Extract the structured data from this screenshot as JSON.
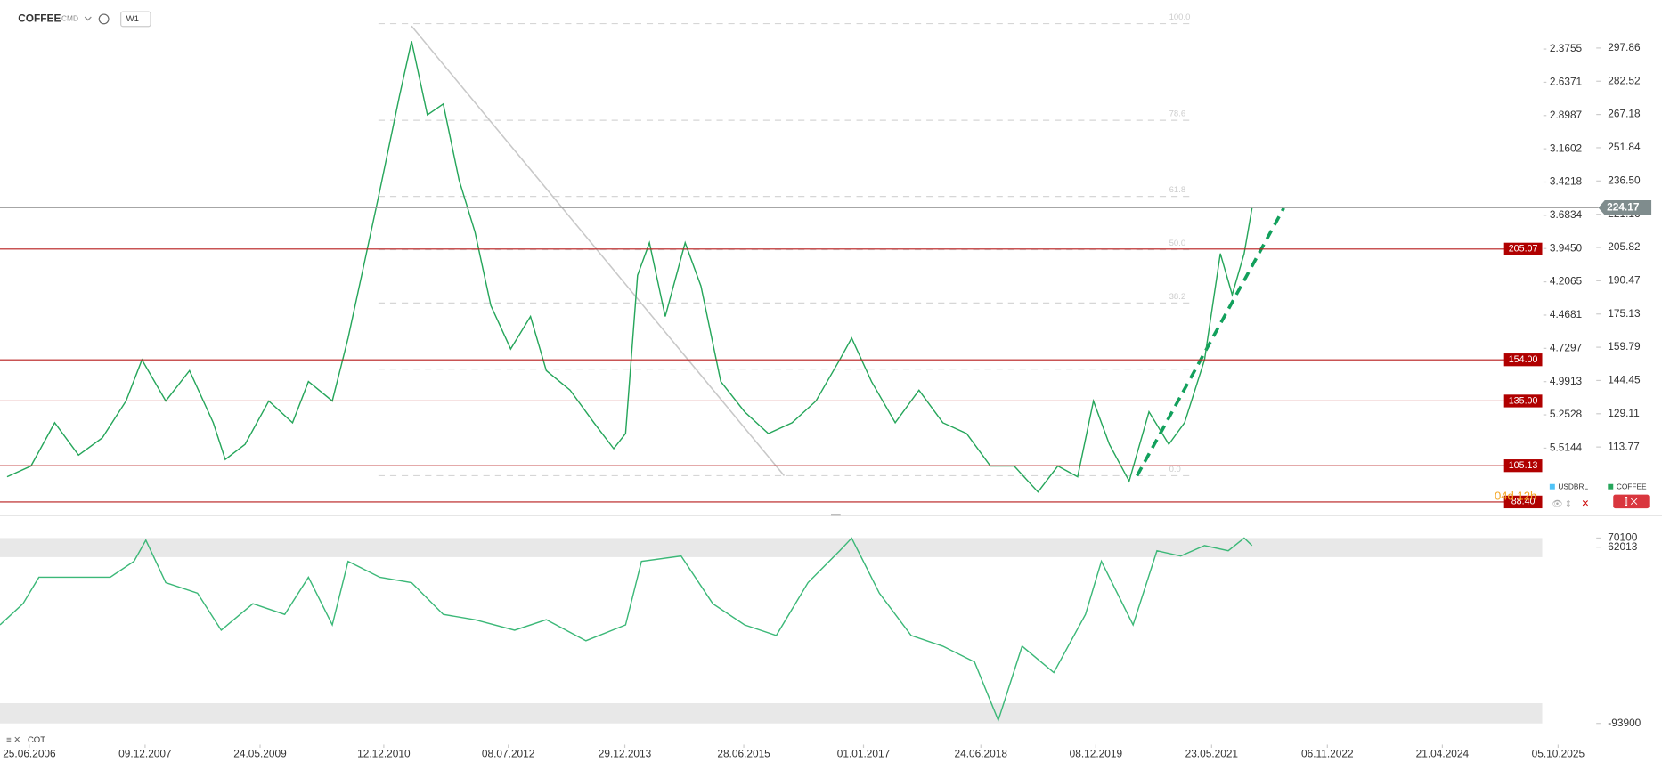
{
  "header": {
    "symbol": "COFFEE",
    "class": "CMD",
    "interval": "W1",
    "indicator": "COT"
  },
  "chart_data": [
    {
      "type": "line",
      "y_axis_name": "COFFEE",
      "y2_axis_name": "USDBRL",
      "y2_color": "#4fc3f7",
      "countdown": "04d 12h",
      "xlim": [
        2006.11,
        2027.07
      ],
      "ylim": [
        83,
        320
      ],
      "y2lim": [
        6.03,
        1.99
      ],
      "xticks": [
        {
          "value": 2006.48,
          "label": "25.06.2006"
        },
        {
          "value": 2007.94,
          "label": "09.12.2007"
        },
        {
          "value": 2009.39,
          "label": "24.05.2009"
        },
        {
          "value": 2010.95,
          "label": "12.12.2010"
        },
        {
          "value": 2012.52,
          "label": "08.07.2012"
        },
        {
          "value": 2013.99,
          "label": "29.12.2013"
        },
        {
          "value": 2015.49,
          "label": "28.06.2015"
        },
        {
          "value": 2017.0,
          "label": "01.01.2017"
        },
        {
          "value": 2018.48,
          "label": "24.06.2018"
        },
        {
          "value": 2019.93,
          "label": "08.12.2019"
        },
        {
          "value": 2021.39,
          "label": "23.05.2021"
        },
        {
          "value": 2022.85,
          "label": "06.11.2022"
        },
        {
          "value": 2024.3,
          "label": "21.04.2024"
        },
        {
          "value": 2025.76,
          "label": "05.10.2025"
        }
      ],
      "yticks": [
        297.86,
        282.52,
        267.18,
        251.84,
        {
          "value": 236.5,
          "label": "236.50"
        },
        221.16,
        205.82,
        190.47,
        175.13,
        159.79,
        144.45,
        129.11,
        113.77
      ],
      "y2ticks": [
        2.3755,
        2.6371,
        2.8987,
        3.1602,
        3.4218,
        3.6834,
        {
          "value": 3.945,
          "label": "3.9450"
        },
        4.2065,
        4.4681,
        4.7297,
        4.9913,
        5.2528,
        5.5144
      ],
      "series": [
        {
          "name": "COFFEE",
          "color": "#26a65b",
          "x": [
            2006.2,
            2006.5,
            2006.8,
            2007.1,
            2007.4,
            2007.7,
            2007.9,
            2008.2,
            2008.5,
            2008.8,
            2008.95,
            2009.2,
            2009.5,
            2009.8,
            2010.0,
            2010.3,
            2010.5,
            2010.7,
            2010.9,
            2011.15,
            2011.3,
            2011.5,
            2011.7,
            2011.9,
            2012.1,
            2012.3,
            2012.55,
            2012.8,
            2013.0,
            2013.3,
            2013.6,
            2013.85,
            2014.0,
            2014.15,
            2014.3,
            2014.5,
            2014.75,
            2014.95,
            2015.2,
            2015.5,
            2015.8,
            2016.1,
            2016.4,
            2016.7,
            2016.85,
            2017.1,
            2017.4,
            2017.7,
            2018.0,
            2018.3,
            2018.6,
            2018.9,
            2019.2,
            2019.45,
            2019.7,
            2019.9,
            2020.1,
            2020.35,
            2020.6,
            2020.85,
            2021.05,
            2021.3,
            2021.5,
            2021.65,
            2021.8,
            2021.9
          ],
          "values": [
            100,
            105,
            125,
            110,
            118,
            135,
            154,
            135,
            149,
            125,
            108,
            115,
            135,
            125,
            144,
            135,
            164,
            198,
            232,
            276,
            301,
            267,
            272,
            237,
            213,
            179,
            159,
            174,
            149,
            140,
            125,
            113,
            120,
            193,
            208,
            174,
            208,
            188,
            144,
            130,
            120,
            125,
            135,
            154,
            164,
            144,
            125,
            140,
            125,
            120,
            105,
            105,
            93,
            105,
            100,
            135,
            115,
            98,
            130,
            115,
            125,
            154,
            203,
            184,
            203,
            224
          ]
        }
      ],
      "last_price": 224.17,
      "levels": [
        {
          "value": 205.07
        },
        {
          "value": 154,
          "label": "154.00"
        },
        {
          "value": 135,
          "label": "135.00"
        },
        {
          "value": 105.13
        },
        {
          "value": 88.4,
          "label": "88.40"
        }
      ],
      "fib": [
        {
          "value": 309.1,
          "label": "100.0"
        },
        {
          "value": 264.5,
          "label": "78.6"
        },
        {
          "value": 229.4,
          "label": "61.8"
        },
        {
          "value": 204.8,
          "label": "50.0"
        },
        {
          "value": 180.2,
          "label": "38.2"
        },
        {
          "value": 149.7,
          "label": null
        },
        {
          "value": 100.5,
          "label": "0.0"
        }
      ],
      "trendlines": [
        {
          "x": [
            2011.3,
            2016.0
          ],
          "y": [
            308,
            100.5
          ],
          "color": "#c8c8c8",
          "dashed": false
        },
        {
          "x": [
            2020.45,
            2022.3
          ],
          "y": [
            100.5,
            224
          ],
          "color": "#12a05c",
          "dashed": true
        }
      ]
    },
    {
      "type": "line",
      "xlim": [
        2006.11,
        2027.07
      ],
      "ylim": [
        -100400,
        77600
      ],
      "yticks": [
        70100,
        62013,
        -93900
      ],
      "bands": [
        [
          53200,
          70100
        ],
        [
          -93900,
          -76000
        ]
      ],
      "series": [
        {
          "name": "COT",
          "color": "#3cb878",
          "x": [
            2006.11,
            2006.4,
            2006.6,
            2007.5,
            2007.8,
            2007.95,
            2008.2,
            2008.6,
            2008.9,
            2009.3,
            2009.7,
            2010.0,
            2010.3,
            2010.5,
            2010.9,
            2011.3,
            2011.7,
            2012.1,
            2012.6,
            2013.0,
            2013.5,
            2014.0,
            2014.2,
            2014.7,
            2015.1,
            2015.5,
            2015.9,
            2016.3,
            2016.7,
            2016.85,
            2017.2,
            2017.6,
            2018.0,
            2018.4,
            2018.7,
            2019.0,
            2019.4,
            2019.8,
            2020.0,
            2020.4,
            2020.7,
            2021.0,
            2021.3,
            2021.6,
            2021.8,
            2021.9
          ],
          "values": [
            -6700,
            12000,
            35400,
            35400,
            49500,
            68200,
            30700,
            21400,
            -11400,
            12000,
            2600,
            35400,
            -6700,
            49500,
            35400,
            30700,
            2600,
            -2100,
            -11400,
            -2100,
            -20800,
            -6700,
            49500,
            54200,
            12000,
            -6700,
            -16100,
            30700,
            58900,
            70000,
            21400,
            -16100,
            -25500,
            -39500,
            -91100,
            -25500,
            -48900,
            2600,
            49500,
            -6700,
            58900,
            54200,
            63500,
            58900,
            70100,
            63500
          ]
        }
      ]
    }
  ]
}
